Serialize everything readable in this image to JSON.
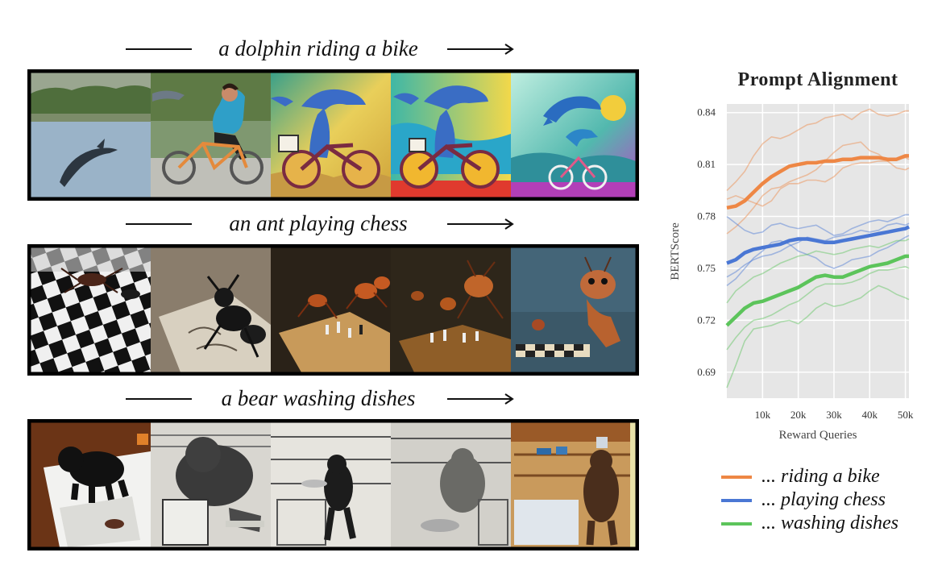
{
  "rows": [
    {
      "caption": "a dolphin riding a bike",
      "frames": [
        "frame-1",
        "frame-2",
        "frame-3",
        "frame-4",
        "frame-5"
      ]
    },
    {
      "caption": "an ant playing chess",
      "frames": [
        "frame-1",
        "frame-2",
        "frame-3",
        "frame-4",
        "frame-5"
      ]
    },
    {
      "caption": "a bear washing dishes",
      "frames": [
        "frame-1",
        "frame-2",
        "frame-3",
        "frame-4",
        "frame-5"
      ]
    }
  ],
  "chart_data": {
    "type": "line",
    "title": "Prompt Alignment",
    "xlabel": "Reward Queries",
    "ylabel": "BERTScore",
    "xlim": [
      0,
      51
    ],
    "ylim": [
      0.675,
      0.845
    ],
    "xticks": [
      {
        "v": 10,
        "label": "10k"
      },
      {
        "v": 20,
        "label": "20k"
      },
      {
        "v": 30,
        "label": "30k"
      },
      {
        "v": 40,
        "label": "40k"
      },
      {
        "v": 50,
        "label": "50k"
      }
    ],
    "yticks": [
      {
        "v": 0.69,
        "label": "0.69"
      },
      {
        "v": 0.72,
        "label": "0.72"
      },
      {
        "v": 0.75,
        "label": "0.75"
      },
      {
        "v": 0.78,
        "label": "0.78"
      },
      {
        "v": 0.81,
        "label": "0.81"
      },
      {
        "v": 0.84,
        "label": "0.84"
      }
    ],
    "grid": true,
    "legend_position": "bottom",
    "x": [
      0,
      2.5,
      5,
      7.5,
      10,
      12.5,
      15,
      17.5,
      20,
      22.5,
      25,
      27.5,
      30,
      32.5,
      35,
      37.5,
      40,
      42.5,
      45,
      47.5,
      50,
      51
    ],
    "series": [
      {
        "name": "... riding a bike",
        "color": "#ee8745",
        "values": [
          0.785,
          0.786,
          0.789,
          0.794,
          0.799,
          0.803,
          0.806,
          0.809,
          0.81,
          0.811,
          0.811,
          0.812,
          0.812,
          0.813,
          0.813,
          0.814,
          0.814,
          0.814,
          0.813,
          0.813,
          0.815,
          0.815
        ],
        "runs": [
          [
            0.795,
            0.8,
            0.806,
            0.815,
            0.822,
            0.826,
            0.825,
            0.827,
            0.83,
            0.833,
            0.834,
            0.837,
            0.838,
            0.839,
            0.836,
            0.84,
            0.842,
            0.839,
            0.838,
            0.839,
            0.841,
            0.841
          ],
          [
            0.77,
            0.774,
            0.779,
            0.785,
            0.792,
            0.796,
            0.797,
            0.8,
            0.802,
            0.804,
            0.807,
            0.812,
            0.817,
            0.821,
            0.822,
            0.823,
            0.818,
            0.816,
            0.812,
            0.808,
            0.807,
            0.808
          ],
          [
            0.79,
            0.792,
            0.79,
            0.788,
            0.786,
            0.789,
            0.796,
            0.799,
            0.799,
            0.801,
            0.801,
            0.8,
            0.803,
            0.808,
            0.81,
            0.811,
            0.811,
            0.812,
            0.812,
            0.813,
            0.814,
            0.813
          ]
        ]
      },
      {
        "name": "... playing chess",
        "color": "#4a77d4",
        "values": [
          0.753,
          0.755,
          0.759,
          0.761,
          0.762,
          0.763,
          0.764,
          0.766,
          0.767,
          0.767,
          0.766,
          0.765,
          0.765,
          0.766,
          0.767,
          0.768,
          0.769,
          0.77,
          0.771,
          0.772,
          0.773,
          0.774
        ],
        "runs": [
          [
            0.78,
            0.776,
            0.772,
            0.77,
            0.771,
            0.775,
            0.776,
            0.774,
            0.773,
            0.774,
            0.775,
            0.772,
            0.769,
            0.77,
            0.773,
            0.775,
            0.777,
            0.778,
            0.777,
            0.779,
            0.781,
            0.781
          ],
          [
            0.74,
            0.744,
            0.75,
            0.756,
            0.76,
            0.765,
            0.766,
            0.764,
            0.76,
            0.758,
            0.756,
            0.752,
            0.75,
            0.752,
            0.755,
            0.756,
            0.757,
            0.76,
            0.762,
            0.765,
            0.768,
            0.769
          ],
          [
            0.745,
            0.748,
            0.752,
            0.755,
            0.757,
            0.758,
            0.76,
            0.763,
            0.765,
            0.768,
            0.767,
            0.766,
            0.768,
            0.769,
            0.77,
            0.772,
            0.771,
            0.772,
            0.775,
            0.776,
            0.775,
            0.776
          ]
        ]
      },
      {
        "name": "... washing dishes",
        "color": "#5cc45b",
        "values": [
          0.717,
          0.722,
          0.727,
          0.73,
          0.731,
          0.733,
          0.735,
          0.737,
          0.739,
          0.742,
          0.745,
          0.746,
          0.745,
          0.745,
          0.747,
          0.749,
          0.751,
          0.752,
          0.753,
          0.755,
          0.757,
          0.757
        ],
        "runs": [
          [
            0.73,
            0.737,
            0.741,
            0.745,
            0.747,
            0.75,
            0.753,
            0.755,
            0.757,
            0.758,
            0.76,
            0.759,
            0.758,
            0.759,
            0.761,
            0.762,
            0.763,
            0.762,
            0.764,
            0.766,
            0.766,
            0.767
          ],
          [
            0.703,
            0.71,
            0.716,
            0.72,
            0.721,
            0.723,
            0.726,
            0.729,
            0.731,
            0.735,
            0.739,
            0.741,
            0.741,
            0.741,
            0.742,
            0.744,
            0.747,
            0.749,
            0.749,
            0.75,
            0.751,
            0.75
          ],
          [
            0.681,
            0.694,
            0.708,
            0.715,
            0.716,
            0.717,
            0.719,
            0.72,
            0.718,
            0.722,
            0.727,
            0.73,
            0.728,
            0.729,
            0.731,
            0.733,
            0.737,
            0.74,
            0.738,
            0.735,
            0.733,
            0.732
          ]
        ]
      }
    ]
  }
}
